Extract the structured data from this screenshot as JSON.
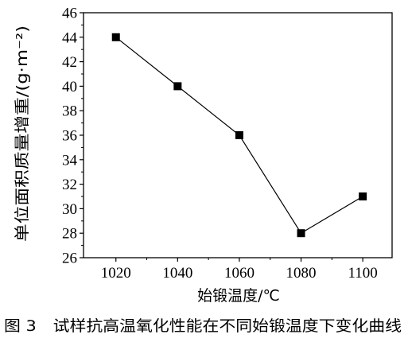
{
  "chart_data": {
    "type": "line",
    "x": [
      1020,
      1040,
      1060,
      1080,
      1100
    ],
    "series": [
      {
        "values": [
          44,
          40,
          36,
          28,
          31
        ]
      }
    ],
    "xlabel": "始锻温度/℃",
    "ylabel": "单位面积质量增重/(g·m⁻²)",
    "caption": "图 3　试样抗高温氧化性能在不同始锻温度下变化曲线",
    "xticks": [
      1020,
      1040,
      1060,
      1080,
      1100
    ],
    "yticks": [
      26,
      28,
      30,
      32,
      34,
      36,
      38,
      40,
      42,
      44,
      46
    ],
    "xlim": [
      1009.5,
      1109.5
    ],
    "ylim": [
      26,
      46
    ],
    "grid": false,
    "legend": "none",
    "marker": "square",
    "colors": {
      "line": "#000000",
      "marker": "#000000",
      "axes": "#000000"
    }
  }
}
